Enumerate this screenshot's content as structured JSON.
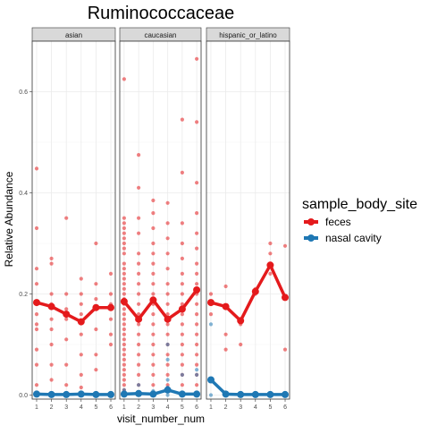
{
  "chart_data": {
    "type": "scatter",
    "title": "Ruminococcaceae",
    "xlabel": "visit_number_num",
    "ylabel": "Relative Abundance",
    "facets": [
      "asian",
      "caucasian",
      "hispanic_or_latino"
    ],
    "x_ticks": [
      "1",
      "2",
      "3",
      "4",
      "5",
      "6"
    ],
    "y_ticks": [
      "0.0",
      "0.2",
      "0.4",
      "0.6"
    ],
    "y_tick_values": [
      0,
      0.2,
      0.4,
      0.6
    ],
    "xlim": [
      0.7,
      6.3
    ],
    "ylim": [
      -0.008,
      0.7
    ],
    "grid": true,
    "legend": {
      "title": "sample_body_site",
      "position": "right",
      "entries": [
        "feces",
        "nasal cavity"
      ]
    },
    "colors": {
      "feces": "#E41A1C",
      "nasal cavity": "#1F78B4"
    },
    "series": [
      {
        "name": "feces",
        "means": {
          "asian": [
            0.183,
            0.175,
            0.16,
            0.145,
            0.173,
            0.173
          ],
          "caucasian": [
            0.185,
            0.15,
            0.188,
            0.15,
            0.17,
            0.208
          ],
          "hispanic_or_latino": [
            0.183,
            0.175,
            0.147,
            0.205,
            0.257,
            0.193
          ]
        },
        "points": {
          "asian": [
            [
              1,
              0.448
            ],
            [
              1,
              0.33
            ],
            [
              1,
              0.25
            ],
            [
              1,
              0.22
            ],
            [
              1,
              0.16
            ],
            [
              1,
              0.14
            ],
            [
              1,
              0.13
            ],
            [
              1,
              0.09
            ],
            [
              1,
              0.06
            ],
            [
              1,
              0.02
            ],
            [
              1,
              0.005
            ],
            [
              2,
              0.27
            ],
            [
              2,
              0.26
            ],
            [
              2,
              0.2
            ],
            [
              2,
              0.18
            ],
            [
              2,
              0.15
            ],
            [
              2,
              0.13
            ],
            [
              2,
              0.1
            ],
            [
              2,
              0.06
            ],
            [
              2,
              0.03
            ],
            [
              3,
              0.35
            ],
            [
              3,
              0.2
            ],
            [
              3,
              0.17
            ],
            [
              3,
              0.15
            ],
            [
              3,
              0.11
            ],
            [
              3,
              0.06
            ],
            [
              3,
              0.02
            ],
            [
              4,
              0.23
            ],
            [
              4,
              0.2
            ],
            [
              4,
              0.18
            ],
            [
              4,
              0.16
            ],
            [
              4,
              0.12
            ],
            [
              4,
              0.08
            ],
            [
              4,
              0.04
            ],
            [
              4,
              0.015
            ],
            [
              5,
              0.3
            ],
            [
              5,
              0.22
            ],
            [
              5,
              0.19
            ],
            [
              5,
              0.17
            ],
            [
              5,
              0.13
            ],
            [
              5,
              0.08
            ],
            [
              5,
              0.05
            ],
            [
              6,
              0.24
            ],
            [
              6,
              0.2
            ],
            [
              6,
              0.18
            ],
            [
              6,
              0.15
            ],
            [
              6,
              0.12
            ],
            [
              6,
              0.1
            ]
          ],
          "caucasian": [
            [
              1,
              0.625
            ],
            [
              1,
              0.35
            ],
            [
              1,
              0.34
            ],
            [
              1,
              0.33
            ],
            [
              1,
              0.32
            ],
            [
              1,
              0.31
            ],
            [
              1,
              0.3
            ],
            [
              1,
              0.29
            ],
            [
              1,
              0.28
            ],
            [
              1,
              0.26
            ],
            [
              1,
              0.25
            ],
            [
              1,
              0.24
            ],
            [
              1,
              0.23
            ],
            [
              1,
              0.22
            ],
            [
              1,
              0.21
            ],
            [
              1,
              0.2
            ],
            [
              1,
              0.19
            ],
            [
              1,
              0.18
            ],
            [
              1,
              0.17
            ],
            [
              1,
              0.16
            ],
            [
              1,
              0.15
            ],
            [
              1,
              0.14
            ],
            [
              1,
              0.13
            ],
            [
              1,
              0.12
            ],
            [
              1,
              0.11
            ],
            [
              1,
              0.1
            ],
            [
              1,
              0.09
            ],
            [
              1,
              0.08
            ],
            [
              1,
              0.07
            ],
            [
              1,
              0.06
            ],
            [
              1,
              0.05
            ],
            [
              1,
              0.04
            ],
            [
              1,
              0.03
            ],
            [
              1,
              0.02
            ],
            [
              1,
              0.01
            ],
            [
              2,
              0.475
            ],
            [
              2,
              0.41
            ],
            [
              2,
              0.35
            ],
            [
              2,
              0.32
            ],
            [
              2,
              0.28
            ],
            [
              2,
              0.26
            ],
            [
              2,
              0.24
            ],
            [
              2,
              0.22
            ],
            [
              2,
              0.2
            ],
            [
              2,
              0.18
            ],
            [
              2,
              0.16
            ],
            [
              2,
              0.14
            ],
            [
              2,
              0.12
            ],
            [
              2,
              0.1
            ],
            [
              2,
              0.08
            ],
            [
              2,
              0.06
            ],
            [
              2,
              0.04
            ],
            [
              2,
              0.02
            ],
            [
              3,
              0.385
            ],
            [
              3,
              0.36
            ],
            [
              3,
              0.33
            ],
            [
              3,
              0.3
            ],
            [
              3,
              0.28
            ],
            [
              3,
              0.26
            ],
            [
              3,
              0.24
            ],
            [
              3,
              0.22
            ],
            [
              3,
              0.2
            ],
            [
              3,
              0.18
            ],
            [
              3,
              0.16
            ],
            [
              3,
              0.14
            ],
            [
              3,
              0.12
            ],
            [
              3,
              0.1
            ],
            [
              3,
              0.08
            ],
            [
              3,
              0.06
            ],
            [
              3,
              0.04
            ],
            [
              3,
              0.02
            ],
            [
              4,
              0.38
            ],
            [
              4,
              0.34
            ],
            [
              4,
              0.31
            ],
            [
              4,
              0.28
            ],
            [
              4,
              0.25
            ],
            [
              4,
              0.22
            ],
            [
              4,
              0.2
            ],
            [
              4,
              0.18
            ],
            [
              4,
              0.16
            ],
            [
              4,
              0.14
            ],
            [
              4,
              0.12
            ],
            [
              4,
              0.1
            ],
            [
              4,
              0.08
            ],
            [
              4,
              0.06
            ],
            [
              4,
              0.04
            ],
            [
              4,
              0.02
            ],
            [
              5,
              0.545
            ],
            [
              5,
              0.44
            ],
            [
              5,
              0.34
            ],
            [
              5,
              0.3
            ],
            [
              5,
              0.27
            ],
            [
              5,
              0.24
            ],
            [
              5,
              0.22
            ],
            [
              5,
              0.2
            ],
            [
              5,
              0.18
            ],
            [
              5,
              0.16
            ],
            [
              5,
              0.14
            ],
            [
              5,
              0.12
            ],
            [
              5,
              0.1
            ],
            [
              5,
              0.08
            ],
            [
              5,
              0.06
            ],
            [
              5,
              0.04
            ],
            [
              5,
              0.02
            ],
            [
              6,
              0.665
            ],
            [
              6,
              0.54
            ],
            [
              6,
              0.42
            ],
            [
              6,
              0.36
            ],
            [
              6,
              0.32
            ],
            [
              6,
              0.29
            ],
            [
              6,
              0.26
            ],
            [
              6,
              0.24
            ],
            [
              6,
              0.22
            ],
            [
              6,
              0.2
            ],
            [
              6,
              0.18
            ],
            [
              6,
              0.16
            ],
            [
              6,
              0.14
            ],
            [
              6,
              0.12
            ],
            [
              6,
              0.1
            ],
            [
              6,
              0.08
            ],
            [
              6,
              0.06
            ],
            [
              6,
              0.04
            ],
            [
              6,
              0.02
            ]
          ],
          "hispanic_or_latino": [
            [
              1,
              0.2
            ],
            [
              1,
              0.16
            ],
            [
              2,
              0.215
            ],
            [
              2,
              0.12
            ],
            [
              2,
              0.09
            ],
            [
              3,
              0.14
            ],
            [
              3,
              0.1
            ],
            [
              4,
              0.21
            ],
            [
              4,
              0.2
            ],
            [
              5,
              0.3
            ],
            [
              5,
              0.28
            ],
            [
              5,
              0.24
            ],
            [
              6,
              0.295
            ],
            [
              6,
              0.195
            ],
            [
              6,
              0.09
            ]
          ]
        }
      },
      {
        "name": "nasal cavity",
        "means": {
          "asian": [
            0.002,
            0.001,
            0.001,
            0.002,
            0.001,
            0.001
          ],
          "caucasian": [
            0.002,
            0.003,
            0.002,
            0.01,
            0.002,
            0.002
          ],
          "hispanic_or_latino": [
            0.03,
            0.002,
            0.001,
            0.001,
            0.001,
            0.001
          ]
        },
        "points": {
          "asian": [
            [
              1,
              0.005
            ],
            [
              1,
              0.0
            ],
            [
              2,
              0.003
            ],
            [
              2,
              0.0
            ],
            [
              3,
              0.002
            ],
            [
              3,
              0.0
            ],
            [
              4,
              0.004
            ],
            [
              4,
              0.0
            ],
            [
              5,
              0.002
            ],
            [
              5,
              0.0
            ],
            [
              6,
              0.002
            ],
            [
              6,
              0.0
            ]
          ],
          "caucasian": [
            [
              1,
              0.01
            ],
            [
              1,
              0.004
            ],
            [
              1,
              0.0
            ],
            [
              2,
              0.02
            ],
            [
              2,
              0.005
            ],
            [
              2,
              0.0
            ],
            [
              3,
              0.008
            ],
            [
              3,
              0.0
            ],
            [
              4,
              0.1
            ],
            [
              4,
              0.07
            ],
            [
              4,
              0.03
            ],
            [
              4,
              0.015
            ],
            [
              4,
              0.0
            ],
            [
              5,
              0.04
            ],
            [
              5,
              0.0
            ],
            [
              6,
              0.05
            ],
            [
              6,
              0.04
            ],
            [
              6,
              0.0
            ]
          ],
          "hispanic_or_latino": [
            [
              1,
              0.14
            ],
            [
              1,
              0.03
            ],
            [
              1,
              0.0
            ],
            [
              2,
              0.003
            ],
            [
              2,
              0.0
            ],
            [
              3,
              0.0
            ],
            [
              4,
              0.0
            ],
            [
              5,
              0.0
            ],
            [
              6,
              0.0
            ]
          ]
        }
      }
    ]
  }
}
